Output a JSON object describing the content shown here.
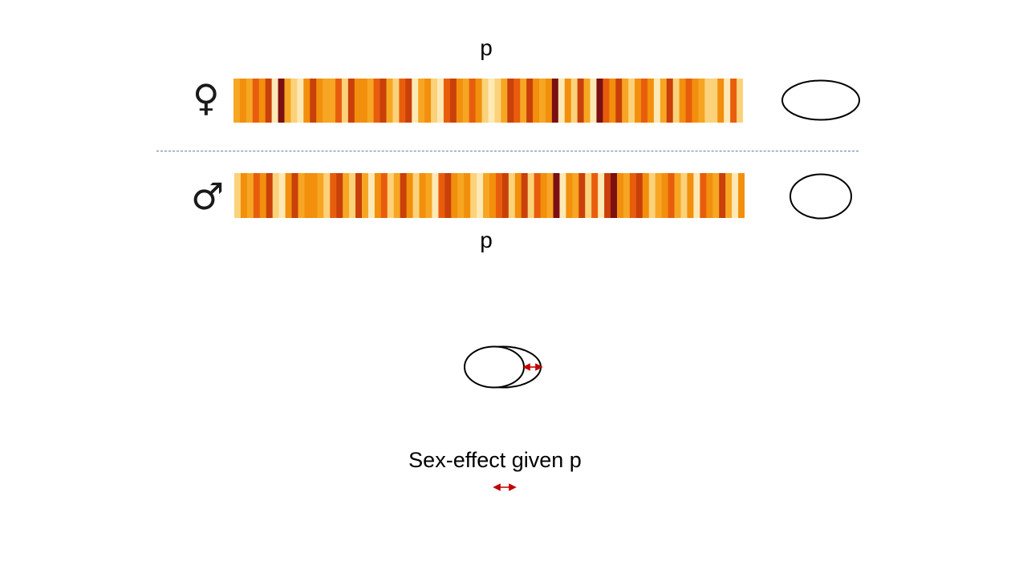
{
  "top_label": "p",
  "bottom_label": "p",
  "female_symbol": "♀",
  "male_symbol": "♂",
  "caption": "Sex-effect given p",
  "colors": {
    "stripe_palette": [
      "#fde9b6",
      "#fbd27a",
      "#f6a623",
      "#f28f0c",
      "#e85d0c",
      "#c9400a",
      "#7b0f12"
    ],
    "divider": "#5b7fa6",
    "arrow": "#c00000"
  },
  "female_stripes": [
    2,
    3,
    2,
    4,
    3,
    5,
    0,
    6,
    2,
    1,
    0,
    3,
    5,
    3,
    2,
    2,
    4,
    1,
    5,
    3,
    3,
    2,
    4,
    5,
    2,
    1,
    4,
    5,
    0,
    2,
    3,
    1,
    0,
    4,
    5,
    3,
    2,
    4,
    3,
    1,
    0,
    1,
    2,
    5,
    4,
    2,
    5,
    3,
    2,
    3,
    6,
    0,
    3,
    1,
    5,
    2,
    0,
    6,
    4,
    3,
    5,
    2,
    1,
    3,
    4,
    3,
    0,
    2,
    5,
    1,
    3,
    4,
    3,
    2,
    1,
    1,
    3,
    0,
    4,
    1
  ],
  "male_stripes": [
    1,
    3,
    2,
    4,
    3,
    5,
    1,
    0,
    3,
    5,
    2,
    3,
    3,
    2,
    1,
    4,
    5,
    2,
    1,
    5,
    2,
    0,
    3,
    4,
    1,
    2,
    5,
    3,
    1,
    3,
    2,
    0,
    4,
    5,
    3,
    2,
    3,
    1,
    0,
    2,
    3,
    4,
    5,
    1,
    3,
    5,
    1,
    4,
    3,
    2,
    6,
    0,
    3,
    2,
    5,
    1,
    4,
    0,
    5,
    6,
    3,
    2,
    4,
    5,
    3,
    1,
    2,
    3,
    4,
    2,
    1,
    3,
    0,
    4,
    3,
    2,
    5,
    2,
    0,
    3
  ]
}
